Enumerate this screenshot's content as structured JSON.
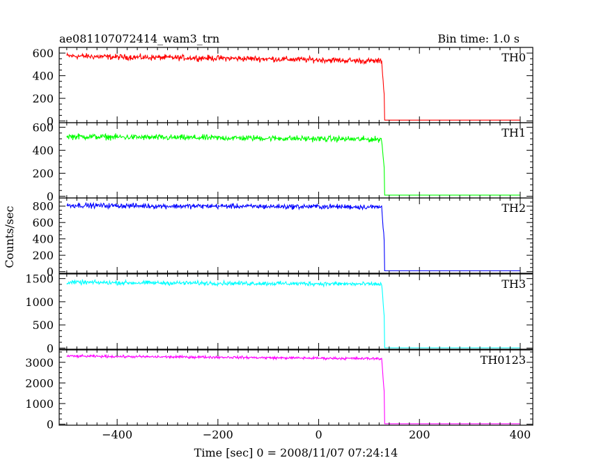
{
  "header": {
    "title": "ae081107072414_wam3_trn",
    "bin_time": "Bin time: 1.0 s"
  },
  "chart_data": {
    "type": "line",
    "title": "ae081107072414_wam3_trn",
    "subtitle": "Bin time: 1.0 s",
    "xlabel": "Time [sec] 0 = 2008/11/07 07:24:14",
    "ylabel": "Counts/sec",
    "xlim": [
      -515,
      425
    ],
    "x_ticks": [
      -400,
      -200,
      0,
      200,
      400
    ],
    "x_tick_labels": [
      "−400",
      "−200",
      "0",
      "200",
      "400"
    ],
    "grid": false,
    "step_time": 130,
    "panels": [
      {
        "name": "TH0",
        "color": "#ff0000",
        "ylim": [
          -15,
          650
        ],
        "y_ticks": [
          0,
          200,
          400,
          600
        ],
        "x": [
          -500,
          -400,
          -300,
          -200,
          -100,
          0,
          100,
          125,
          130,
          131,
          140,
          200,
          300,
          400
        ],
        "y": [
          575,
          565,
          560,
          555,
          548,
          540,
          530,
          530,
          240,
          8,
          8,
          8,
          8,
          8
        ],
        "noise": 25
      },
      {
        "name": "TH1",
        "color": "#00ff00",
        "ylim": [
          -15,
          640
        ],
        "y_ticks": [
          0,
          200,
          400,
          600
        ],
        "x": [
          -500,
          -400,
          -300,
          -200,
          -100,
          0,
          100,
          125,
          130,
          131,
          140,
          200,
          300,
          400
        ],
        "y": [
          520,
          515,
          510,
          508,
          505,
          500,
          495,
          495,
          250,
          10,
          10,
          10,
          10,
          10
        ],
        "noise": 25
      },
      {
        "name": "TH2",
        "color": "#0000ff",
        "ylim": [
          -20,
          900
        ],
        "y_ticks": [
          0,
          200,
          400,
          600,
          800
        ],
        "x": [
          -500,
          -400,
          -300,
          -200,
          -100,
          0,
          100,
          125,
          130,
          131,
          140,
          200,
          300,
          400
        ],
        "y": [
          810,
          805,
          800,
          800,
          795,
          795,
          790,
          790,
          380,
          10,
          10,
          10,
          10,
          10
        ],
        "noise": 30
      },
      {
        "name": "TH3",
        "color": "#00ffff",
        "ylim": [
          -25,
          1600
        ],
        "y_ticks": [
          0,
          500,
          1000,
          1500
        ],
        "x": [
          -500,
          -400,
          -300,
          -200,
          -100,
          0,
          100,
          125,
          130,
          131,
          140,
          200,
          300,
          400
        ],
        "y": [
          1420,
          1410,
          1405,
          1400,
          1395,
          1390,
          1380,
          1380,
          700,
          5,
          5,
          5,
          5,
          5
        ],
        "noise": 45
      },
      {
        "name": "TH0123",
        "color": "#ff00ff",
        "ylim": [
          -50,
          3600
        ],
        "y_ticks": [
          0,
          1000,
          2000,
          3000
        ],
        "x": [
          -500,
          -400,
          -300,
          -200,
          -100,
          0,
          100,
          125,
          130,
          131,
          140,
          200,
          300,
          400
        ],
        "y": [
          3300,
          3280,
          3260,
          3250,
          3220,
          3200,
          3180,
          3180,
          1600,
          20,
          20,
          20,
          20,
          20
        ],
        "noise": 60
      }
    ]
  }
}
